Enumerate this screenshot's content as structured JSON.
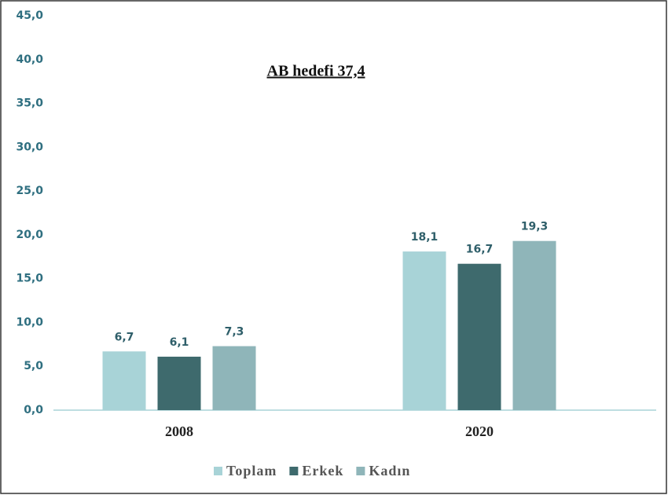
{
  "chart_data": {
    "type": "bar",
    "annotation": "AB hedefi  37,4",
    "categories": [
      "2008",
      "2020"
    ],
    "series": [
      {
        "name": "Toplam",
        "color": "#a8d3d7",
        "values": [
          6.7,
          18.1
        ],
        "value_labels": [
          "6,7",
          "18,1"
        ]
      },
      {
        "name": "Erkek",
        "color": "#3e6a6d",
        "values": [
          6.1,
          16.7
        ],
        "value_labels": [
          "6,1",
          "16,7"
        ]
      },
      {
        "name": "Kadın",
        "color": "#8fb5b9",
        "values": [
          7.3,
          19.3
        ],
        "value_labels": [
          "7,3",
          "19,3"
        ]
      }
    ],
    "ylim": [
      0,
      45
    ],
    "yticks": [
      {
        "value": 0,
        "label": "0,0"
      },
      {
        "value": 5,
        "label": "5,0"
      },
      {
        "value": 10,
        "label": "10,0"
      },
      {
        "value": 15,
        "label": "15,0"
      },
      {
        "value": 20,
        "label": "20,0"
      },
      {
        "value": 25,
        "label": "25,0"
      },
      {
        "value": 30,
        "label": "30,0"
      },
      {
        "value": 35,
        "label": "35,0"
      },
      {
        "value": 40,
        "label": "40,0"
      },
      {
        "value": 45,
        "label": "45,0"
      }
    ],
    "grid": false,
    "legend": "bottom"
  }
}
